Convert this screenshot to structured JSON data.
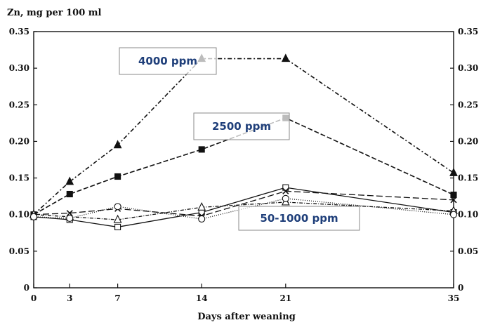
{
  "chart_data": {
    "type": "line",
    "title": "",
    "ylabel": "Zn, mg per 100 ml",
    "xlabel": "Days after weaning",
    "x": [
      0,
      3,
      7,
      14,
      21,
      35
    ],
    "xlim": [
      0,
      35
    ],
    "ylim": [
      0,
      0.35
    ],
    "xticks": [
      "0",
      "3",
      "7",
      "14",
      "21",
      "35"
    ],
    "yticks": [
      "0",
      "0.05",
      "0.10",
      "0.15",
      "0.20",
      "0.25",
      "0.30",
      "0.35"
    ],
    "right_axis": true,
    "grid": false,
    "legend": "none",
    "series": [
      {
        "marker": "triangle-filled",
        "dash": "6,3,2,3",
        "values": [
          0.1,
          0.145,
          0.195,
          0.313,
          0.313,
          0.157
        ]
      },
      {
        "marker": "square-filled",
        "dash": "7,3",
        "values": [
          0.1,
          0.128,
          0.152,
          0.189,
          0.232,
          0.127
        ]
      },
      {
        "marker": "square-open",
        "dash": "",
        "values": [
          0.097,
          0.093,
          0.083,
          0.103,
          0.137,
          0.103
        ]
      },
      {
        "marker": "x",
        "dash": "9,4",
        "values": [
          0.1,
          0.102,
          0.108,
          0.098,
          0.132,
          0.12
        ]
      },
      {
        "marker": "triangle-open",
        "dash": "5,2,1,2",
        "values": [
          0.1,
          0.097,
          0.093,
          0.11,
          0.117,
          0.105
        ]
      },
      {
        "marker": "circle-open",
        "dash": "1,2",
        "values": [
          0.097,
          0.095,
          0.111,
          0.094,
          0.122,
          0.1
        ]
      }
    ],
    "annotations": [
      {
        "text": "4000 ppm",
        "box": true
      },
      {
        "text": "2500 ppm",
        "box": true
      },
      {
        "text": "50-1000 ppm",
        "box": true
      }
    ],
    "colors": {
      "line": "#111111",
      "annotation_text": "#1f3f7a",
      "annotation_border": "#8a8a8a"
    }
  }
}
